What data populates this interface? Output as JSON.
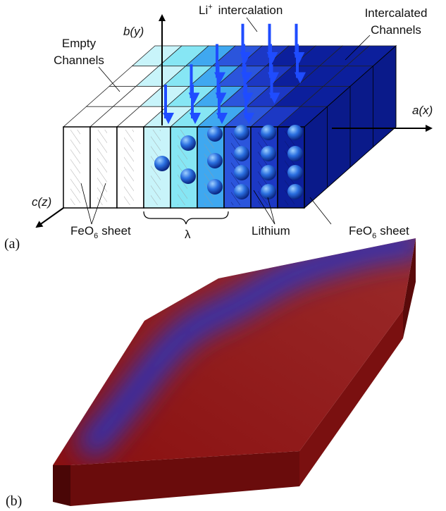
{
  "panel_a": {
    "label": "(a)",
    "axes": {
      "a": "a(x)",
      "b": "b(y)",
      "c": "c(z)"
    },
    "li_label": {
      "base": "Li",
      "sup": "+",
      "rest": "intercalation"
    },
    "intercalated": [
      "Intercalated",
      "Channels"
    ],
    "empty": [
      "Empty",
      "Channels"
    ],
    "feo6_left": {
      "base": "FeO",
      "sub": "6",
      "rest": "sheet"
    },
    "lambda": "λ",
    "lithium": "Lithium",
    "feo6_right": {
      "base": "FeO",
      "sub": "6",
      "rest": "sheet"
    }
  },
  "panel_b": {
    "label": "(b)"
  }
}
